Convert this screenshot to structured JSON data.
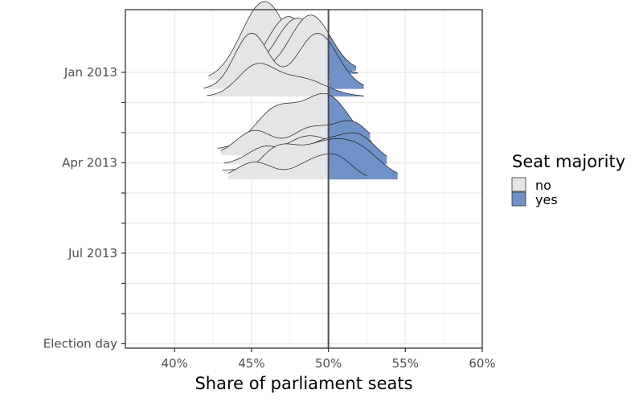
{
  "chart_data": {
    "type": "ridgeline",
    "title": "",
    "xlabel": "Share of parliament seats",
    "ylabel": "",
    "xlim": [
      0.368,
      0.6
    ],
    "x_ticks": [
      {
        "value": 0.4,
        "label": "40%"
      },
      {
        "value": 0.45,
        "label": "45%"
      },
      {
        "value": 0.5,
        "label": "50%"
      },
      {
        "value": 0.55,
        "label": "55%"
      },
      {
        "value": 0.6,
        "label": "60%"
      }
    ],
    "y_ticks": [
      {
        "label": "Jan 2013",
        "labeled": true
      },
      {
        "label": "",
        "labeled": false
      },
      {
        "label": "",
        "labeled": false
      },
      {
        "label": "Apr 2013",
        "labeled": true
      },
      {
        "label": "",
        "labeled": false
      },
      {
        "label": "",
        "labeled": false
      },
      {
        "label": "Jul 2013",
        "labeled": true
      },
      {
        "label": "",
        "labeled": false
      },
      {
        "label": "",
        "labeled": false
      },
      {
        "label": "Election day",
        "labeled": true
      }
    ],
    "threshold": 0.5,
    "legend": {
      "title": "Seat majority",
      "placement": "right",
      "items": [
        {
          "label": "no",
          "color": "#e5e5e5"
        },
        {
          "label": "yes",
          "color": "#7092c8"
        }
      ]
    },
    "series": [
      {
        "name": "ridge-1",
        "baseline_month": 0.25,
        "peak_month": 2.6,
        "range": [
          0.422,
          0.505
        ],
        "peaks": [
          {
            "center": 0.4585,
            "sd": 0.015,
            "weight": 1.0
          }
        ]
      },
      {
        "name": "ridge-2",
        "baseline_month": 0.15,
        "peak_month": 2.0,
        "range": [
          0.436,
          0.51
        ],
        "peaks": [
          {
            "center": 0.474,
            "sd": 0.014,
            "weight": 1.0
          }
        ]
      },
      {
        "name": "ridge-3",
        "baseline_month": 0.05,
        "peak_month": 1.85,
        "range": [
          0.443,
          0.519
        ],
        "peaks": [
          {
            "center": 0.48,
            "sd": 0.014,
            "weight": 1.0
          }
        ]
      },
      {
        "name": "ridge-4",
        "baseline_month": -0.05,
        "peak_month": 1.85,
        "range": [
          0.44,
          0.518
        ],
        "peaks": [
          {
            "center": 0.4885,
            "sd": 0.013,
            "weight": 1.0
          }
        ]
      },
      {
        "name": "ridge-5",
        "baseline_month": 0.55,
        "peak_month": 1.85,
        "range": [
          0.419,
          0.523
        ],
        "peaks": [
          {
            "center": 0.45,
            "sd": 0.011,
            "weight": 0.55
          },
          {
            "center": 0.493,
            "sd": 0.013,
            "weight": 0.55
          }
        ]
      },
      {
        "name": "ridge-6",
        "baseline_month": 0.8,
        "peak_month": 1.1,
        "range": [
          0.421,
          0.523
        ],
        "peaks": [
          {
            "center": 0.453,
            "sd": 0.012,
            "weight": 0.9
          },
          {
            "center": 0.482,
            "sd": 0.016,
            "weight": 0.55
          }
        ]
      },
      {
        "name": "ridge-7",
        "baseline_month": 2.55,
        "peak_month": 1.85,
        "range": [
          0.428,
          0.528
        ],
        "peaks": [
          {
            "center": 0.466,
            "sd": 0.014,
            "weight": 0.55
          },
          {
            "center": 0.499,
            "sd": 0.015,
            "weight": 0.75
          }
        ]
      },
      {
        "name": "ridge-8",
        "baseline_month": 2.75,
        "peak_month": 1.15,
        "range": [
          0.43,
          0.527
        ],
        "peaks": [
          {
            "center": 0.452,
            "sd": 0.012,
            "weight": 0.45
          },
          {
            "center": 0.487,
            "sd": 0.012,
            "weight": 0.45
          },
          {
            "center": 0.515,
            "sd": 0.013,
            "weight": 0.6
          }
        ]
      },
      {
        "name": "ridge-9",
        "baseline_month": 3.25,
        "peak_month": 1.15,
        "range": [
          0.431,
          0.536
        ],
        "peaks": [
          {
            "center": 0.47,
            "sd": 0.013,
            "weight": 0.45
          },
          {
            "center": 0.49,
            "sd": 0.012,
            "weight": 0.7
          },
          {
            "center": 0.515,
            "sd": 0.012,
            "weight": 0.6
          }
        ]
      },
      {
        "name": "ridge-10",
        "baseline_month": 3.05,
        "peak_month": 1.05,
        "range": [
          0.432,
          0.538
        ],
        "peaks": [
          {
            "center": 0.46,
            "sd": 0.012,
            "weight": 0.45
          },
          {
            "center": 0.495,
            "sd": 0.012,
            "weight": 0.5
          },
          {
            "center": 0.519,
            "sd": 0.012,
            "weight": 0.7
          }
        ]
      },
      {
        "name": "ridge-11",
        "baseline_month": 3.55,
        "peak_month": 1.35,
        "range": [
          0.436,
          0.545
        ],
        "peaks": [
          {
            "center": 0.468,
            "sd": 0.013,
            "weight": 0.7
          },
          {
            "center": 0.495,
            "sd": 0.013,
            "weight": 0.55
          },
          {
            "center": 0.518,
            "sd": 0.015,
            "weight": 0.7
          }
        ]
      },
      {
        "name": "ridge-12",
        "baseline_month": 3.55,
        "peak_month": 0.85,
        "range": [
          0.435,
          0.525
        ],
        "peaks": [
          {
            "center": 0.452,
            "sd": 0.012,
            "weight": 0.55
          },
          {
            "center": 0.49,
            "sd": 0.012,
            "weight": 0.55
          },
          {
            "center": 0.507,
            "sd": 0.01,
            "weight": 0.55
          }
        ]
      }
    ]
  }
}
